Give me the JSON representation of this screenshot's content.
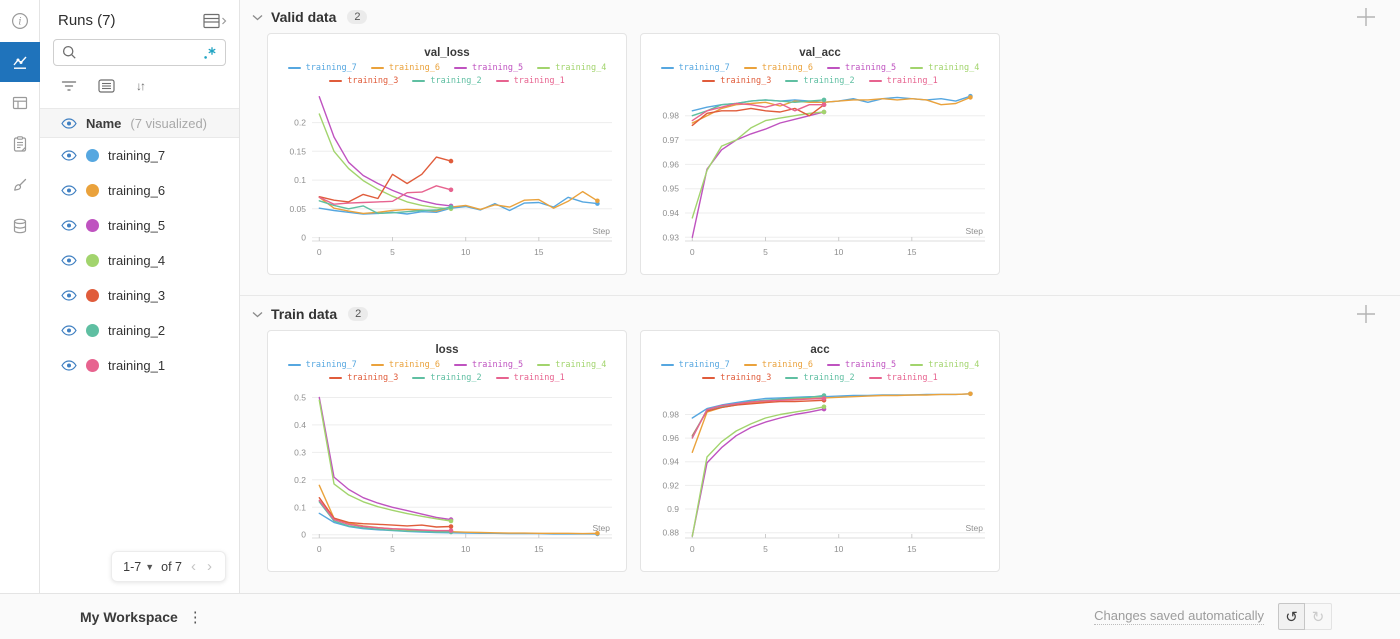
{
  "icon_rail": {
    "items": [
      "info-icon",
      "line-chart-icon",
      "table-icon",
      "clipboard-icon",
      "brush-icon",
      "database-icon"
    ],
    "active_index": 1,
    "active_color": "#1f73bb"
  },
  "runs_panel": {
    "title": "Runs (7)",
    "panel_icon": "table-expand-icon",
    "search": {
      "value": "",
      "placeholder": "",
      "left_icon": "search-icon",
      "right_icon": "regex-icon",
      "regex_color": "#1fa3c2"
    },
    "toolbar_icons": [
      "filter-icon",
      "list-settings-icon",
      "sort-icon"
    ],
    "header": {
      "icon": "eye-icon",
      "label": "Name",
      "annotation": "(7 visualized)"
    },
    "runs": [
      {
        "label": "training_7",
        "color": "#56a7e0"
      },
      {
        "label": "training_6",
        "color": "#eaa23c"
      },
      {
        "label": "training_5",
        "color": "#bf53c0"
      },
      {
        "label": "training_4",
        "color": "#a2d46d"
      },
      {
        "label": "training_3",
        "color": "#e05c3b"
      },
      {
        "label": "training_2",
        "color": "#5fbfa2"
      },
      {
        "label": "training_1",
        "color": "#e7638f"
      }
    ],
    "pagination": {
      "range_label": "1-7",
      "of_label": "of 7",
      "prev_icon": "chevron-left-icon",
      "next_icon": "chevron-right-icon"
    }
  },
  "sections": [
    {
      "title": "Valid data",
      "badge": "2",
      "add_icon": "plus-icon",
      "charts": [
        {
          "type": "line",
          "title": "val_loss",
          "xlabel": "Step",
          "xlim": [
            -0.5,
            20
          ],
          "xticks": [
            0,
            5,
            10,
            15
          ],
          "xtick_labels": [
            "0",
            "5",
            "10",
            "15"
          ],
          "ylim": [
            -0.006,
            0.248
          ],
          "yticks": [
            0,
            0.05,
            0.1,
            0.15,
            0.2
          ],
          "ytick_labels": [
            "0",
            "0.05",
            "0.1",
            "0.15",
            "0.2"
          ],
          "series": [
            {
              "name": "training_7",
              "color": "#56a7e0",
              "values": [
                0.051,
                0.047,
                0.044,
                0.041,
                0.042,
                0.044,
                0.041,
                0.045,
                0.044,
                0.051,
                0.054,
                0.048,
                0.059,
                0.047,
                0.06,
                0.061,
                0.053,
                0.07,
                0.062,
                0.059
              ]
            },
            {
              "name": "training_6",
              "color": "#eaa23c",
              "values": [
                0.07,
                0.051,
                0.046,
                0.042,
                0.044,
                0.047,
                0.049,
                0.048,
                0.046,
                0.053,
                0.056,
                0.049,
                0.057,
                0.053,
                0.065,
                0.066,
                0.051,
                0.063,
                0.08,
                0.064
              ]
            },
            {
              "name": "training_5",
              "color": "#bf53c0",
              "values": [
                0.245,
                0.175,
                0.131,
                0.108,
                0.094,
                0.082,
                0.072,
                0.064,
                0.058,
                0.055
              ]
            },
            {
              "name": "training_4",
              "color": "#a2d46d",
              "values": [
                0.215,
                0.15,
                0.12,
                0.099,
                0.084,
                0.072,
                0.062,
                0.056,
                0.052,
                0.05
              ]
            },
            {
              "name": "training_3",
              "color": "#e05c3b",
              "values": [
                0.071,
                0.065,
                0.062,
                0.075,
                0.068,
                0.11,
                0.094,
                0.11,
                0.14,
                0.133
              ]
            },
            {
              "name": "training_2",
              "color": "#5fbfa2",
              "values": [
                0.064,
                0.056,
                0.05,
                0.055,
                0.042,
                0.043,
                0.045,
                0.047,
                0.048,
                0.053
              ]
            },
            {
              "name": "training_1",
              "color": "#e7638f",
              "values": [
                0.07,
                0.058,
                0.06,
                0.061,
                0.062,
                0.063,
                0.078,
                0.079,
                0.09,
                0.083
              ]
            }
          ]
        },
        {
          "type": "line",
          "title": "val_acc",
          "xlabel": "Step",
          "xlim": [
            -0.5,
            20
          ],
          "xticks": [
            0,
            5,
            10,
            15
          ],
          "xtick_labels": [
            "0",
            "5",
            "10",
            "15"
          ],
          "ylim": [
            0.9285,
            0.9885
          ],
          "yticks": [
            0.93,
            0.94,
            0.95,
            0.96,
            0.97,
            0.98
          ],
          "ytick_labels": [
            "0.93",
            "0.94",
            "0.95",
            "0.96",
            "0.97",
            "0.98"
          ],
          "series": [
            {
              "name": "training_7",
              "color": "#56a7e0",
              "values": [
                0.982,
                0.9835,
                0.9845,
                0.985,
                0.986,
                0.9865,
                0.986,
                0.9865,
                0.986,
                0.9855,
                0.986,
                0.987,
                0.9855,
                0.987,
                0.9875,
                0.987,
                0.9865,
                0.987,
                0.986,
                0.988
              ]
            },
            {
              "name": "training_6",
              "color": "#eaa23c",
              "values": [
                0.977,
                0.98,
                0.983,
                0.9845,
                0.985,
                0.9855,
                0.984,
                0.986,
                0.9855,
                0.9855,
                0.986,
                0.9865,
                0.9865,
                0.987,
                0.9865,
                0.987,
                0.9865,
                0.9845,
                0.985,
                0.9875
              ]
            },
            {
              "name": "training_5",
              "color": "#bf53c0",
              "values": [
                0.93,
                0.958,
                0.966,
                0.97,
                0.9725,
                0.9745,
                0.977,
                0.9785,
                0.98,
                0.9815
              ]
            },
            {
              "name": "training_4",
              "color": "#a2d46d",
              "values": [
                0.938,
                0.9575,
                0.9675,
                0.97,
                0.975,
                0.978,
                0.979,
                0.98,
                0.981,
                0.9815
              ]
            },
            {
              "name": "training_3",
              "color": "#e05c3b",
              "values": [
                0.976,
                0.981,
                0.982,
                0.982,
                0.983,
                0.982,
                0.9815,
                0.983,
                0.98,
                0.9845
              ]
            },
            {
              "name": "training_2",
              "color": "#5fbfa2",
              "values": [
                0.98,
                0.982,
                0.9845,
                0.985,
                0.986,
                0.9865,
                0.986,
                0.9855,
                0.986,
                0.9865
              ]
            },
            {
              "name": "training_1",
              "color": "#e7638f",
              "values": [
                0.978,
                0.982,
                0.9835,
                0.985,
                0.9845,
                0.9835,
                0.985,
                0.982,
                0.9845,
                0.9845
              ]
            }
          ]
        }
      ]
    },
    {
      "title": "Train data",
      "badge": "2",
      "add_icon": "plus-icon",
      "charts": [
        {
          "type": "line",
          "title": "loss",
          "xlabel": "Step",
          "xlim": [
            -0.5,
            20
          ],
          "xticks": [
            0,
            5,
            10,
            15
          ],
          "xtick_labels": [
            "0",
            "5",
            "10",
            "15"
          ],
          "ylim": [
            -0.012,
            0.52
          ],
          "yticks": [
            0,
            0.1,
            0.2,
            0.3,
            0.4,
            0.5
          ],
          "ytick_labels": [
            "0",
            "0.1",
            "0.2",
            "0.3",
            "0.4",
            "0.5"
          ],
          "series": [
            {
              "name": "training_7",
              "color": "#56a7e0",
              "values": [
                0.078,
                0.045,
                0.03,
                0.022,
                0.018,
                0.015,
                0.012,
                0.01,
                0.008,
                0.007,
                0.006,
                0.005,
                0.005,
                0.004,
                0.004,
                0.004,
                0.003,
                0.003,
                0.003,
                0.003
              ]
            },
            {
              "name": "training_6",
              "color": "#eaa23c",
              "values": [
                0.18,
                0.06,
                0.042,
                0.032,
                0.026,
                0.021,
                0.018,
                0.015,
                0.013,
                0.011,
                0.009,
                0.008,
                0.007,
                0.006,
                0.006,
                0.005,
                0.005,
                0.005,
                0.004,
                0.005
              ]
            },
            {
              "name": "training_5",
              "color": "#bf53c0",
              "values": [
                0.5,
                0.21,
                0.165,
                0.135,
                0.115,
                0.1,
                0.088,
                0.075,
                0.063,
                0.055
              ]
            },
            {
              "name": "training_4",
              "color": "#a2d46d",
              "values": [
                0.49,
                0.185,
                0.145,
                0.12,
                0.102,
                0.089,
                0.077,
                0.067,
                0.058,
                0.05
              ]
            },
            {
              "name": "training_3",
              "color": "#e05c3b",
              "values": [
                0.135,
                0.06,
                0.045,
                0.04,
                0.038,
                0.035,
                0.032,
                0.035,
                0.028,
                0.03
              ]
            },
            {
              "name": "training_2",
              "color": "#5fbfa2",
              "values": [
                0.12,
                0.05,
                0.032,
                0.025,
                0.02,
                0.016,
                0.013,
                0.012,
                0.01,
                0.01
              ]
            },
            {
              "name": "training_1",
              "color": "#e7638f",
              "values": [
                0.125,
                0.055,
                0.038,
                0.03,
                0.025,
                0.022,
                0.02,
                0.017,
                0.015,
                0.015
              ]
            }
          ]
        },
        {
          "type": "line",
          "title": "acc",
          "xlabel": "Step",
          "xlim": [
            -0.5,
            20
          ],
          "xticks": [
            0,
            5,
            10,
            15
          ],
          "xtick_labels": [
            "0",
            "5",
            "10",
            "15"
          ],
          "ylim": [
            0.8755,
            0.999
          ],
          "yticks": [
            0.88,
            0.9,
            0.92,
            0.94,
            0.96,
            0.98
          ],
          "ytick_labels": [
            "0.88",
            "0.9",
            "0.92",
            "0.94",
            "0.96",
            "0.98"
          ],
          "series": [
            {
              "name": "training_7",
              "color": "#56a7e0",
              "values": [
                0.977,
                0.985,
                0.988,
                0.99,
                0.992,
                0.9935,
                0.994,
                0.9945,
                0.995,
                0.995,
                0.9955,
                0.996,
                0.996,
                0.9965,
                0.9965,
                0.9965,
                0.997,
                0.997,
                0.997,
                0.9975
              ]
            },
            {
              "name": "training_6",
              "color": "#eaa23c",
              "values": [
                0.948,
                0.982,
                0.986,
                0.988,
                0.99,
                0.991,
                0.9925,
                0.993,
                0.9935,
                0.994,
                0.9945,
                0.995,
                0.9955,
                0.996,
                0.996,
                0.9965,
                0.9965,
                0.997,
                0.997,
                0.9975
              ]
            },
            {
              "name": "training_5",
              "color": "#bf53c0",
              "values": [
                0.877,
                0.939,
                0.952,
                0.962,
                0.969,
                0.9735,
                0.977,
                0.98,
                0.982,
                0.9845
              ]
            },
            {
              "name": "training_4",
              "color": "#a2d46d",
              "values": [
                0.877,
                0.944,
                0.957,
                0.966,
                0.972,
                0.977,
                0.98,
                0.982,
                0.984,
                0.9865
              ]
            },
            {
              "name": "training_3",
              "color": "#e05c3b",
              "values": [
                0.962,
                0.983,
                0.986,
                0.988,
                0.989,
                0.99,
                0.991,
                0.991,
                0.9915,
                0.992
              ]
            },
            {
              "name": "training_2",
              "color": "#5fbfa2",
              "values": [
                0.961,
                0.984,
                0.987,
                0.989,
                0.991,
                0.992,
                0.993,
                0.994,
                0.9945,
                0.996
              ]
            },
            {
              "name": "training_1",
              "color": "#e7638f",
              "values": [
                0.96,
                0.984,
                0.9875,
                0.989,
                0.9905,
                0.9915,
                0.992,
                0.9925,
                0.993,
                0.9935
              ]
            }
          ]
        }
      ]
    }
  ],
  "footer": {
    "workspace_label": "My Workspace",
    "menu_icon": "kebab-menu-icon",
    "status_text": "Changes saved automatically",
    "undo_icon": "undo-icon",
    "redo_icon": "redo-icon"
  }
}
